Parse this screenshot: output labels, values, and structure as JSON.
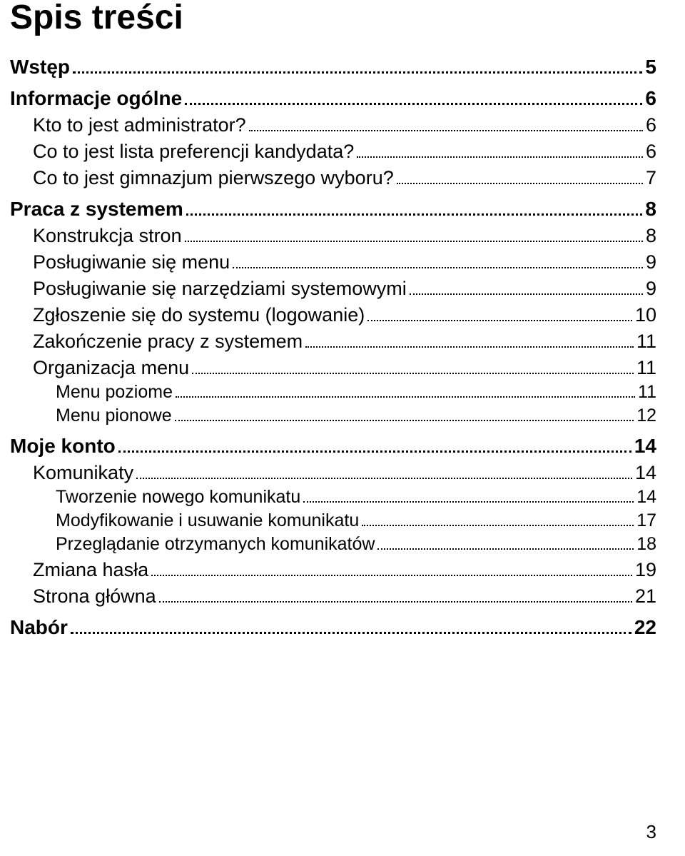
{
  "title": "Spis treści",
  "page_number": "3",
  "toc": [
    {
      "level": 1,
      "label": "Wstęp",
      "page": "5"
    },
    {
      "level": 1,
      "label": "Informacje ogólne",
      "page": "6"
    },
    {
      "level": 2,
      "label": "Kto to jest administrator?",
      "page": "6"
    },
    {
      "level": 2,
      "label": "Co to jest lista preferencji kandydata?",
      "page": "6"
    },
    {
      "level": 2,
      "label": "Co to jest gimnazjum pierwszego wyboru?",
      "page": "7"
    },
    {
      "level": 1,
      "label": "Praca z systemem",
      "page": "8"
    },
    {
      "level": 2,
      "label": "Konstrukcja stron",
      "page": "8"
    },
    {
      "level": 2,
      "label": "Posługiwanie się menu",
      "page": "9"
    },
    {
      "level": 2,
      "label": "Posługiwanie się narzędziami systemowymi",
      "page": "9"
    },
    {
      "level": 2,
      "label": "Zgłoszenie się do systemu (logowanie)",
      "page": "10"
    },
    {
      "level": 2,
      "label": "Zakończenie pracy z systemem",
      "page": "11"
    },
    {
      "level": 2,
      "label": "Organizacja menu",
      "page": "11"
    },
    {
      "level": 3,
      "label": "Menu poziome",
      "page": "11"
    },
    {
      "level": 3,
      "label": "Menu pionowe",
      "page": "12"
    },
    {
      "level": 1,
      "label": "Moje konto",
      "page": "14"
    },
    {
      "level": 2,
      "label": "Komunikaty",
      "page": "14"
    },
    {
      "level": 3,
      "label": "Tworzenie nowego komunikatu",
      "page": "14"
    },
    {
      "level": 3,
      "label": "Modyfikowanie i usuwanie komunikatu",
      "page": "17"
    },
    {
      "level": 3,
      "label": "Przeglądanie otrzymanych komunikatów",
      "page": "18"
    },
    {
      "level": 2,
      "label": "Zmiana hasła",
      "page": "19"
    },
    {
      "level": 2,
      "label": "Strona główna",
      "page": "21"
    },
    {
      "level": 1,
      "label": "Nabór",
      "page": "22"
    }
  ]
}
